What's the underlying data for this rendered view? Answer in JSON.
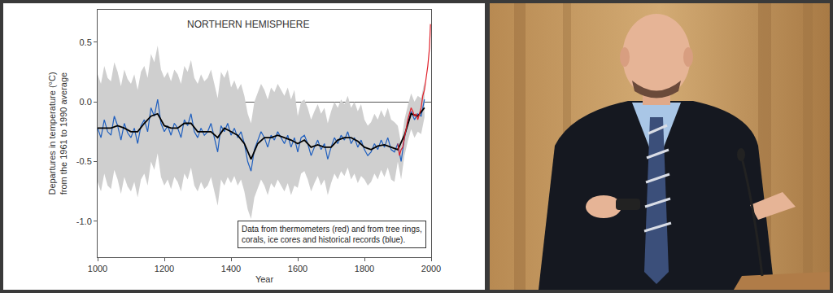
{
  "chart_data": {
    "type": "line",
    "title": "NORTHERN HEMISPHERE",
    "xlabel": "Year",
    "ylabel": [
      "Departures in temperature (°C)",
      "from the 1961 to 1990 average"
    ],
    "annotations": [
      {
        "text": [
          "Data from thermometers (red) and from tree rings,",
          "corals, ice cores and historical records (blue)."
        ]
      }
    ],
    "xlim": [
      1000,
      2000
    ],
    "xticks": [
      1000,
      1200,
      1400,
      1600,
      1800,
      2000
    ],
    "ylim": [
      -1.3,
      0.77
    ],
    "yticks": [
      {
        "value": -1,
        "label": "-1.0"
      },
      -0.5,
      {
        "value": 0,
        "label": "0.0"
      },
      0.5
    ],
    "grid": false,
    "series": [
      {
        "color": "#1f5fbf",
        "x": [
          1000,
          1010,
          1020,
          1030,
          1040,
          1050,
          1060,
          1070,
          1080,
          1090,
          1100,
          1110,
          1120,
          1130,
          1140,
          1150,
          1160,
          1170,
          1180,
          1190,
          1200,
          1210,
          1220,
          1230,
          1240,
          1250,
          1260,
          1270,
          1280,
          1290,
          1300,
          1310,
          1320,
          1330,
          1340,
          1350,
          1360,
          1370,
          1380,
          1390,
          1400,
          1410,
          1420,
          1430,
          1440,
          1450,
          1460,
          1470,
          1480,
          1490,
          1500,
          1510,
          1520,
          1530,
          1540,
          1550,
          1560,
          1570,
          1580,
          1590,
          1600,
          1610,
          1620,
          1630,
          1640,
          1650,
          1660,
          1670,
          1680,
          1690,
          1700,
          1710,
          1720,
          1730,
          1740,
          1750,
          1760,
          1770,
          1780,
          1790,
          1800,
          1810,
          1820,
          1830,
          1840,
          1850,
          1860,
          1870,
          1880,
          1890,
          1900,
          1910,
          1920,
          1930,
          1940,
          1950,
          1960,
          1970,
          1980
        ],
        "values": [
          -0.22,
          -0.3,
          -0.15,
          -0.25,
          -0.28,
          -0.12,
          -0.2,
          -0.32,
          -0.18,
          -0.26,
          -0.3,
          -0.22,
          -0.35,
          -0.2,
          -0.15,
          -0.25,
          -0.05,
          -0.12,
          0.02,
          -0.18,
          -0.25,
          -0.2,
          -0.28,
          -0.18,
          -0.22,
          -0.3,
          -0.15,
          -0.2,
          -0.1,
          -0.25,
          -0.3,
          -0.22,
          -0.28,
          -0.25,
          -0.18,
          -0.3,
          -0.42,
          -0.2,
          -0.25,
          -0.18,
          -0.28,
          -0.22,
          -0.3,
          -0.25,
          -0.35,
          -0.5,
          -0.58,
          -0.4,
          -0.32,
          -0.25,
          -0.3,
          -0.38,
          -0.28,
          -0.32,
          -0.25,
          -0.3,
          -0.35,
          -0.28,
          -0.38,
          -0.3,
          -0.42,
          -0.3,
          -0.28,
          -0.35,
          -0.45,
          -0.38,
          -0.32,
          -0.4,
          -0.35,
          -0.48,
          -0.38,
          -0.3,
          -0.35,
          -0.28,
          -0.32,
          -0.25,
          -0.35,
          -0.3,
          -0.38,
          -0.32,
          -0.4,
          -0.45,
          -0.42,
          -0.35,
          -0.4,
          -0.32,
          -0.38,
          -0.3,
          -0.4,
          -0.42,
          -0.35,
          -0.5,
          -0.3,
          -0.18,
          -0.08,
          -0.15,
          -0.1,
          -0.12,
          0.02
        ],
        "error": [
          0.45,
          0.45,
          0.45,
          0.45,
          0.45,
          0.45,
          0.45,
          0.45,
          0.45,
          0.45,
          0.45,
          0.45,
          0.45,
          0.45,
          0.45,
          0.45,
          0.45,
          0.45,
          0.45,
          0.45,
          0.45,
          0.45,
          0.45,
          0.45,
          0.45,
          0.45,
          0.45,
          0.45,
          0.45,
          0.45,
          0.45,
          0.45,
          0.45,
          0.45,
          0.45,
          0.45,
          0.45,
          0.45,
          0.45,
          0.45,
          0.4,
          0.4,
          0.4,
          0.4,
          0.4,
          0.4,
          0.4,
          0.4,
          0.4,
          0.4,
          0.4,
          0.4,
          0.4,
          0.4,
          0.4,
          0.4,
          0.4,
          0.4,
          0.4,
          0.4,
          0.3,
          0.3,
          0.3,
          0.3,
          0.3,
          0.3,
          0.3,
          0.3,
          0.3,
          0.3,
          0.3,
          0.3,
          0.3,
          0.3,
          0.3,
          0.3,
          0.3,
          0.3,
          0.3,
          0.3,
          0.25,
          0.25,
          0.25,
          0.25,
          0.25,
          0.25,
          0.25,
          0.25,
          0.25,
          0.25,
          0.15,
          0.15,
          0.15,
          0.15,
          0.15,
          0.15,
          0.15,
          0.15,
          0.15
        ]
      },
      {
        "color": "#000000",
        "x": [
          1000,
          1020,
          1040,
          1060,
          1080,
          1100,
          1120,
          1140,
          1160,
          1180,
          1200,
          1220,
          1240,
          1260,
          1280,
          1300,
          1320,
          1340,
          1360,
          1380,
          1400,
          1420,
          1440,
          1460,
          1480,
          1500,
          1520,
          1540,
          1560,
          1580,
          1600,
          1620,
          1640,
          1660,
          1680,
          1700,
          1720,
          1740,
          1760,
          1780,
          1800,
          1820,
          1840,
          1860,
          1880,
          1900,
          1920,
          1940,
          1960,
          1980
        ],
        "values": [
          -0.22,
          -0.22,
          -0.22,
          -0.2,
          -0.22,
          -0.25,
          -0.25,
          -0.18,
          -0.12,
          -0.1,
          -0.2,
          -0.22,
          -0.22,
          -0.18,
          -0.18,
          -0.25,
          -0.25,
          -0.25,
          -0.3,
          -0.22,
          -0.25,
          -0.28,
          -0.35,
          -0.48,
          -0.35,
          -0.3,
          -0.3,
          -0.28,
          -0.3,
          -0.32,
          -0.35,
          -0.32,
          -0.38,
          -0.36,
          -0.38,
          -0.38,
          -0.32,
          -0.3,
          -0.3,
          -0.33,
          -0.38,
          -0.4,
          -0.37,
          -0.36,
          -0.38,
          -0.4,
          -0.28,
          -0.1,
          -0.12,
          -0.05
        ]
      },
      {
        "color": "#e0202a",
        "x": [
          1900,
          1905,
          1910,
          1915,
          1920,
          1925,
          1930,
          1935,
          1940,
          1945,
          1950,
          1955,
          1960,
          1965,
          1970,
          1975,
          1980,
          1985,
          1990,
          1995,
          1998
        ],
        "values": [
          -0.35,
          -0.45,
          -0.4,
          -0.38,
          -0.3,
          -0.22,
          -0.15,
          -0.1,
          -0.05,
          -0.08,
          -0.12,
          -0.1,
          -0.15,
          -0.1,
          -0.05,
          0.05,
          0.1,
          0.2,
          0.3,
          0.45,
          0.65
        ]
      }
    ]
  }
}
